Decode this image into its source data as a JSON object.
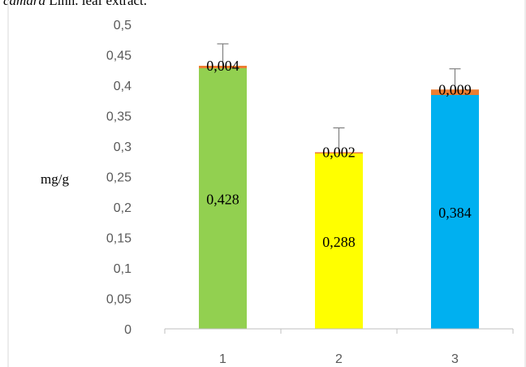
{
  "caption": {
    "italic_part": "camara",
    "rest": " Linn. leaf extract."
  },
  "chart_data": {
    "type": "bar",
    "stacked": true,
    "categories": [
      "1",
      "2",
      "3"
    ],
    "series": [
      {
        "values": [
          0.428,
          0.288,
          0.384
        ],
        "labels": [
          "0,428",
          "0,288",
          "0,384"
        ],
        "colors": [
          "#92d050",
          "#ffff00",
          "#00b0f0"
        ]
      },
      {
        "values": [
          0.004,
          0.002,
          0.009
        ],
        "labels": [
          "0,004",
          "0,002",
          "0,009"
        ],
        "color": "#ed7d31"
      }
    ],
    "error_bars": {
      "upper": [
        0.036,
        0.04,
        0.034
      ],
      "color": "#808080"
    },
    "ylabel": "mg/g",
    "ylim": [
      0,
      0.5
    ],
    "yticks": [
      0,
      0.05,
      0.1,
      0.15,
      0.2,
      0.25,
      0.3,
      0.35,
      0.4,
      0.45,
      0.5
    ],
    "ytick_labels": [
      "0",
      "0,05",
      "0,1",
      "0,15",
      "0,2",
      "0,25",
      "0,3",
      "0,35",
      "0,4",
      "0,45",
      "0,5"
    ],
    "grid": false,
    "legend": false
  }
}
